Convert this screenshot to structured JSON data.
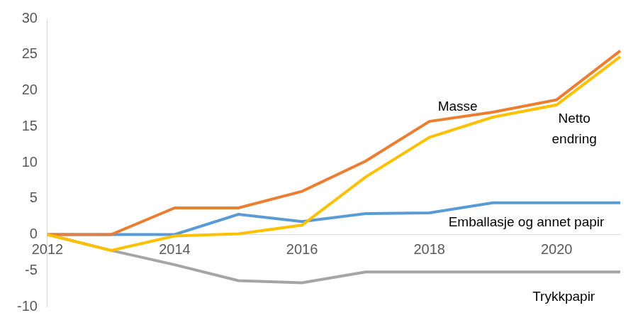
{
  "chart_data": {
    "type": "line",
    "categories": [
      "2012",
      null,
      "2014",
      null,
      "2016",
      null,
      "2018",
      null,
      "2020",
      null
    ],
    "series": [
      {
        "name": "Masse",
        "color": "#ED7D31",
        "values": [
          0,
          0,
          3.7,
          3.7,
          6,
          10.2,
          15.7,
          17,
          18.7,
          25.5
        ]
      },
      {
        "name": "Netto endring",
        "color": "#FFC000",
        "values": [
          0,
          -2.2,
          -0.2,
          0.1,
          1.3,
          8,
          13.5,
          16.3,
          18,
          24.7
        ]
      },
      {
        "name": "Emballasje og annet papir",
        "color": "#5B9BD5",
        "values": [
          0,
          0,
          0,
          2.8,
          1.8,
          2.9,
          3,
          4.4,
          4.4,
          4.4
        ]
      },
      {
        "name": "Trykkpapir",
        "color": "#A5A5A5",
        "values": [
          0,
          -2.2,
          -4.2,
          -6.4,
          -6.7,
          -5.2,
          -5.2,
          -5.2,
          -5.2,
          -5.2
        ]
      }
    ],
    "ylim": [
      -10,
      30
    ],
    "yticks": [
      -10,
      -5,
      0,
      5,
      10,
      15,
      20,
      25,
      30
    ],
    "grid": false
  }
}
